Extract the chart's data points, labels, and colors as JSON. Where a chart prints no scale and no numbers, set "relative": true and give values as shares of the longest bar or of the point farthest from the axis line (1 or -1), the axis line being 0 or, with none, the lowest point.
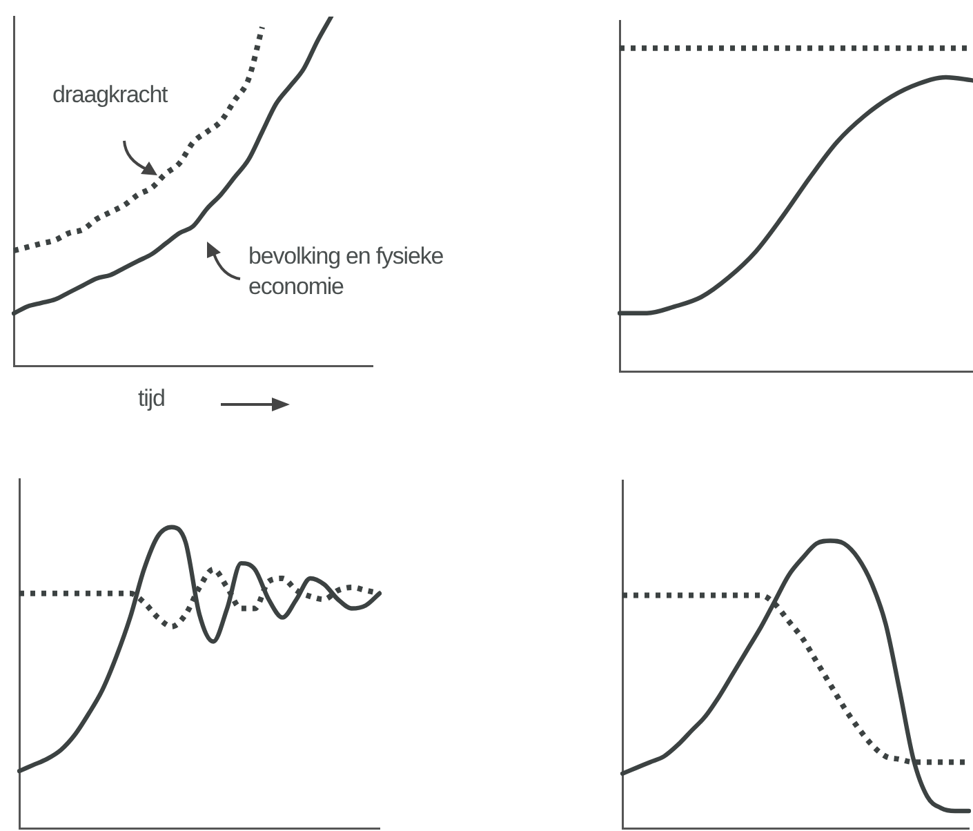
{
  "chart_data": [
    {
      "type": "line",
      "relative": true,
      "xlabel": "tijd",
      "marker": "none",
      "categories": [
        null,
        null,
        null,
        null,
        null,
        null,
        null,
        null,
        null,
        null,
        null,
        null,
        null,
        null,
        null,
        null,
        null,
        null,
        null,
        null,
        null,
        null,
        null,
        null,
        null,
        null,
        null
      ],
      "series": [
        {
          "name": "draagkracht",
          "color": "#3c4242",
          "line_style": "dotted",
          "values": [
            0.33,
            0.34,
            0.35,
            0.36,
            0.38,
            0.39,
            0.42,
            0.44,
            0.46,
            0.49,
            0.51,
            0.55,
            0.58,
            0.64,
            0.67,
            0.7,
            0.76,
            0.82,
            0.97,
            null,
            null,
            null,
            null,
            null,
            null,
            null,
            null
          ]
        },
        {
          "name": "bevolking en fysieke economie",
          "color": "#3c4242",
          "line_style": "solid",
          "values": [
            0.15,
            0.17,
            0.18,
            0.19,
            0.21,
            0.23,
            0.25,
            0.26,
            0.28,
            0.3,
            0.32,
            0.35,
            0.38,
            0.4,
            0.45,
            0.49,
            0.54,
            0.59,
            0.67,
            0.75,
            0.8,
            0.85,
            0.93,
            1.0,
            null,
            null,
            null
          ]
        }
      ]
    },
    {
      "type": "line",
      "relative": true,
      "marker": "none",
      "categories": [
        null,
        null,
        null,
        null,
        null,
        null,
        null,
        null,
        null,
        null,
        null,
        null,
        null,
        null
      ],
      "series": [
        {
          "color": "#3c4242",
          "line_style": "dotted",
          "values": [
            1,
            1,
            1,
            1,
            1,
            1,
            1,
            1,
            1,
            1,
            1,
            1,
            1,
            1
          ]
        },
        {
          "color": "#3c4242",
          "line_style": "solid",
          "values": [
            0.18,
            0.18,
            0.2,
            0.23,
            0.29,
            0.37,
            0.48,
            0.6,
            0.71,
            0.79,
            0.85,
            0.89,
            0.91,
            0.9
          ]
        }
      ]
    },
    {
      "type": "line",
      "relative": true,
      "marker": "none",
      "categories": [
        null,
        null,
        null,
        null,
        null,
        null,
        null,
        null,
        null,
        null,
        null,
        null,
        null,
        null,
        null,
        null,
        null,
        null,
        null,
        null,
        null,
        null,
        null,
        null,
        null,
        null,
        null
      ],
      "series": [
        {
          "color": "#3c4242",
          "line_style": "dotted",
          "values": [
            0.78,
            0.78,
            0.78,
            0.78,
            0.78,
            0.78,
            0.78,
            0.78,
            0.78,
            0.75,
            0.7,
            0.67,
            0.71,
            0.8,
            0.86,
            0.8,
            0.73,
            0.73,
            0.82,
            0.83,
            0.79,
            0.77,
            0.76,
            0.79,
            0.8,
            0.79,
            0.78
          ]
        },
        {
          "color": "#3c4242",
          "line_style": "solid",
          "values": [
            0.19,
            0.21,
            0.23,
            0.26,
            0.31,
            0.38,
            0.46,
            0.57,
            0.7,
            0.86,
            0.97,
            1.0,
            0.95,
            0.71,
            0.62,
            0.73,
            0.88,
            0.86,
            0.76,
            0.7,
            0.76,
            0.83,
            0.81,
            0.76,
            0.73,
            0.74,
            0.78
          ]
        }
      ]
    },
    {
      "type": "line",
      "relative": true,
      "marker": "none",
      "categories": [
        null,
        null,
        null,
        null,
        null,
        null,
        null,
        null,
        null,
        null,
        null,
        null,
        null,
        null,
        null,
        null,
        null,
        null,
        null,
        null,
        null,
        null,
        null,
        null,
        null,
        null
      ],
      "series": [
        {
          "color": "#3c4242",
          "line_style": "dotted",
          "values": [
            0.81,
            0.81,
            0.81,
            0.81,
            0.81,
            0.81,
            0.81,
            0.81,
            0.81,
            0.81,
            0.81,
            0.78,
            0.72,
            0.66,
            0.58,
            0.5,
            0.42,
            0.35,
            0.29,
            0.25,
            0.24,
            0.23,
            0.23,
            0.23,
            0.23,
            0.23
          ]
        },
        {
          "color": "#3c4242",
          "line_style": "solid",
          "values": [
            0.19,
            0.21,
            0.23,
            0.25,
            0.29,
            0.34,
            0.39,
            0.46,
            0.54,
            0.62,
            0.7,
            0.79,
            0.88,
            0.94,
            0.99,
            1.0,
            0.99,
            0.94,
            0.85,
            0.71,
            0.48,
            0.24,
            0.11,
            0.07,
            0.06,
            0.06
          ]
        }
      ]
    }
  ]
}
